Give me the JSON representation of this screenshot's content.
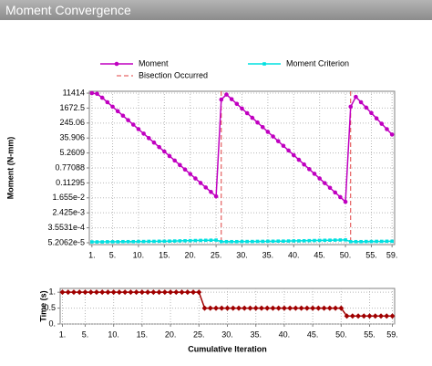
{
  "header": {
    "title": "Moment Convergence"
  },
  "chart_data": [
    {
      "type": "line",
      "y_label": "Moment (N-mm)",
      "log_scale": true,
      "grid": true,
      "x": [
        1,
        2,
        3,
        4,
        5,
        6,
        7,
        8,
        9,
        10,
        11,
        12,
        13,
        14,
        15,
        16,
        17,
        18,
        19,
        20,
        21,
        22,
        23,
        24,
        25,
        26,
        27,
        28,
        29,
        30,
        31,
        32,
        33,
        34,
        35,
        36,
        37,
        38,
        39,
        40,
        41,
        42,
        43,
        44,
        45,
        46,
        47,
        48,
        49,
        50,
        51,
        52,
        53,
        54,
        55,
        56,
        57,
        58,
        59
      ],
      "series": [
        {
          "name": "Moment",
          "color": "#c000c0",
          "marker": "circle",
          "values": [
            11414,
            10471,
            6310,
            3550,
            1995,
            1122,
            631,
            355,
            200,
            112,
            63.1,
            35.5,
            20.0,
            11.2,
            6.31,
            3.55,
            2.0,
            1.12,
            0.631,
            0.355,
            0.2,
            0.112,
            0.0631,
            0.0355,
            0.02,
            5010,
            9550,
            5250,
            2880,
            1585,
            871,
            479,
            263,
            145,
            79.4,
            43.7,
            24.0,
            13.2,
            7.24,
            3.98,
            2.19,
            1.2,
            0.661,
            0.363,
            0.2,
            0.11,
            0.0603,
            0.0331,
            0.0182,
            0.01,
            2000,
            7080,
            3550,
            1778,
            891,
            447,
            224,
            112,
            56.2
          ]
        },
        {
          "name": "Moment Criterion",
          "color": "#00e0e0",
          "marker": "square",
          "values": [
            5.8e-05,
            5.8e-05,
            5.8e-05,
            5.9e-05,
            5.9e-05,
            5.9e-05,
            6e-05,
            6e-05,
            6e-05,
            6.1e-05,
            6.1e-05,
            6.2e-05,
            6.2e-05,
            6.3e-05,
            6.3e-05,
            6.4e-05,
            6.5e-05,
            6.6e-05,
            6.7e-05,
            6.8e-05,
            6.9e-05,
            7e-05,
            7.1e-05,
            7.2e-05,
            7.3e-05,
            6e-05,
            6e-05,
            6e-05,
            6e-05,
            6.1e-05,
            6.1e-05,
            6.1e-05,
            6.2e-05,
            6.2e-05,
            6.3e-05,
            6.3e-05,
            6.4e-05,
            6.4e-05,
            6.5e-05,
            6.6e-05,
            6.6e-05,
            6.7e-05,
            6.8e-05,
            6.9e-05,
            7e-05,
            7.1e-05,
            7.2e-05,
            7.3e-05,
            7.4e-05,
            7.5e-05,
            6e-05,
            6e-05,
            6e-05,
            6.1e-05,
            6.1e-05,
            6.2e-05,
            6.2e-05,
            6.3e-05,
            6.3e-05
          ]
        }
      ],
      "bisection": {
        "name": "Bisection Occurred",
        "color": "#e04040",
        "x": [
          26,
          51
        ]
      },
      "xlim": [
        0.5,
        59.5
      ],
      "xticks": [
        {
          "value": 1,
          "label": "1."
        },
        {
          "value": 5,
          "label": "5."
        },
        {
          "value": 10,
          "label": "10."
        },
        {
          "value": 15,
          "label": "15."
        },
        {
          "value": 20,
          "label": "20."
        },
        {
          "value": 25,
          "label": "25."
        },
        {
          "value": 30,
          "label": "30."
        },
        {
          "value": 35,
          "label": "35."
        },
        {
          "value": 40,
          "label": "40."
        },
        {
          "value": 45,
          "label": "45."
        },
        {
          "value": 50,
          "label": "50."
        },
        {
          "value": 55,
          "label": "55."
        },
        {
          "value": 59,
          "label": "59."
        }
      ],
      "ylim": [
        4.1e-05,
        14500
      ],
      "yticks": [
        11414,
        1672.5,
        245.06,
        35.906,
        5.2609,
        0.77088,
        0.11295,
        {
          "value": 0.01655,
          "label": "1.655e-2"
        },
        {
          "value": 0.002425,
          "label": "2.425e-3"
        },
        {
          "value": 0.00035531,
          "label": "3.5531e-4"
        },
        {
          "value": 5.2062e-05,
          "label": "5.2062e-5"
        }
      ]
    },
    {
      "type": "line",
      "y_label": "Time (s)",
      "x_label": "Cumulative Iteration",
      "log_scale": false,
      "grid": true,
      "x": [
        1,
        2,
        3,
        4,
        5,
        6,
        7,
        8,
        9,
        10,
        11,
        12,
        13,
        14,
        15,
        16,
        17,
        18,
        19,
        20,
        21,
        22,
        23,
        24,
        25,
        26,
        27,
        28,
        29,
        30,
        31,
        32,
        33,
        34,
        35,
        36,
        37,
        38,
        39,
        40,
        41,
        42,
        43,
        44,
        45,
        46,
        47,
        48,
        49,
        50,
        51,
        52,
        53,
        54,
        55,
        56,
        57,
        58,
        59
      ],
      "series": [
        {
          "color": "#a00000",
          "marker": "diamond",
          "values": [
            1,
            1,
            1,
            1,
            1,
            1,
            1,
            1,
            1,
            1,
            1,
            1,
            1,
            1,
            1,
            1,
            1,
            1,
            1,
            1,
            1,
            1,
            1,
            1,
            1,
            0.5,
            0.5,
            0.5,
            0.5,
            0.5,
            0.5,
            0.5,
            0.5,
            0.5,
            0.5,
            0.5,
            0.5,
            0.5,
            0.5,
            0.5,
            0.5,
            0.5,
            0.5,
            0.5,
            0.5,
            0.5,
            0.5,
            0.5,
            0.5,
            0.5,
            0.25,
            0.25,
            0.25,
            0.25,
            0.25,
            0.25,
            0.25,
            0.25,
            0.25
          ]
        }
      ],
      "xlim": [
        0.6,
        59.4
      ],
      "xticks": [
        {
          "value": 1,
          "label": "1."
        },
        {
          "value": 5,
          "label": "5."
        },
        {
          "value": 10,
          "label": "10."
        },
        {
          "value": 15,
          "label": "15."
        },
        {
          "value": 20,
          "label": "20."
        },
        {
          "value": 25,
          "label": "25."
        },
        {
          "value": 30,
          "label": "30."
        },
        {
          "value": 35,
          "label": "35."
        },
        {
          "value": 40,
          "label": "40."
        },
        {
          "value": 45,
          "label": "45."
        },
        {
          "value": 50,
          "label": "50."
        },
        {
          "value": 55,
          "label": "55."
        },
        {
          "value": 59,
          "label": "59."
        }
      ],
      "ylim": [
        0,
        1.12
      ],
      "yticks": [
        {
          "value": 0,
          "label": "0."
        },
        0.5,
        {
          "value": 1,
          "label": "1."
        }
      ]
    }
  ]
}
